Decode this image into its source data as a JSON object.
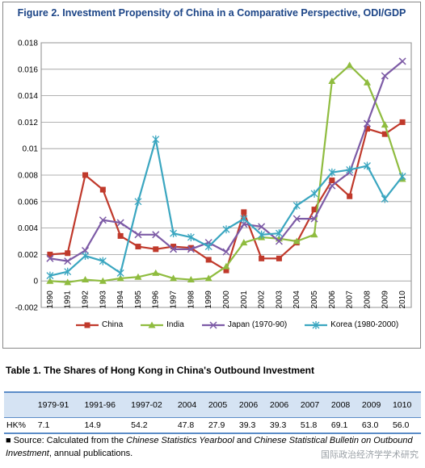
{
  "figure": {
    "title": "Figure 2. Investment Propensity of China in a Comparative Perspective, ODI/GDP"
  },
  "chart_data": {
    "type": "line",
    "title": "Figure 2. Investment Propensity of China in a Comparative Perspective, ODI/GDP",
    "xlabel": "",
    "ylabel": "",
    "categories": [
      "1990",
      "1991",
      "1992",
      "1993",
      "1994",
      "1995",
      "1996",
      "1997",
      "1998",
      "1999",
      "2000",
      "2001",
      "2002",
      "2003",
      "2004",
      "2005",
      "2006",
      "2007",
      "2008",
      "2009",
      "2010"
    ],
    "ylim": [
      -0.002,
      0.018
    ],
    "yticks": [
      "-0.002",
      "0",
      "0.002",
      "0.004",
      "0.006",
      "0.008",
      "0.01",
      "0.012",
      "0.014",
      "0.016",
      "0.018"
    ],
    "grid": "horizontal",
    "legend": "bottom",
    "series": [
      {
        "name": "China",
        "color": "#c0392b",
        "marker": "square",
        "values": [
          0.002,
          0.0021,
          0.008,
          0.0069,
          0.0034,
          0.0026,
          0.0024,
          0.0026,
          0.0025,
          0.0016,
          0.0008,
          0.0052,
          0.0017,
          0.0017,
          0.0029,
          0.0054,
          0.0076,
          0.0064,
          0.0115,
          0.0111,
          0.012
        ]
      },
      {
        "name": "India",
        "color": "#8fbc3f",
        "marker": "triangle",
        "values": [
          0.0,
          -0.0001,
          0.0001,
          0.0,
          0.0002,
          0.0003,
          0.0006,
          0.0002,
          0.0001,
          0.0002,
          0.0011,
          0.0029,
          0.0033,
          0.0032,
          0.003,
          0.0035,
          0.0151,
          0.0163,
          0.015,
          0.0118,
          0.0077
        ]
      },
      {
        "name": "Japan (1970-90)",
        "color": "#7d5ba6",
        "marker": "x",
        "values": [
          0.0017,
          0.0015,
          0.0023,
          0.0046,
          0.0044,
          0.0035,
          0.0035,
          0.0024,
          0.0024,
          0.0029,
          0.0022,
          0.0043,
          0.0041,
          0.003,
          0.0047,
          0.0047,
          0.0072,
          0.0082,
          0.0119,
          0.0155,
          0.0166
        ]
      },
      {
        "name": "Korea (1980-2000)",
        "color": "#3aa6c0",
        "marker": "star",
        "values": [
          0.0004,
          0.0007,
          0.0019,
          0.0015,
          0.0006,
          0.006,
          0.0107,
          0.0036,
          0.0033,
          0.0026,
          0.0039,
          0.0047,
          0.0035,
          0.0036,
          0.0057,
          0.0066,
          0.0082,
          0.0084,
          0.0087,
          0.0062,
          0.0079
        ]
      }
    ]
  },
  "table": {
    "title": "Table 1. The Shares of Hong Kong in China's Outbound Investment",
    "headers": [
      "",
      "1979-91",
      "1991-96",
      "1997-02",
      "2004",
      "2005",
      "2006",
      "2006",
      "2007",
      "2008",
      "2009",
      "1010"
    ],
    "row_label": "HK%",
    "values": [
      "7.1",
      "14.9",
      "54.2",
      "47.8",
      "27.9",
      "39.3",
      "39.3",
      "51.8",
      "69.1",
      "63.0",
      "56.0"
    ]
  },
  "source": {
    "bullet": "■",
    "prefix": " Source: Calculated from the ",
    "italic1": "Chinese Statistics Yearbool",
    "middle": " and ",
    "italic2": "Chinese Statistical Bulletin on Outbound Investment",
    "suffix": ", annual publications."
  },
  "watermark": "国际政治经济学学术研究"
}
